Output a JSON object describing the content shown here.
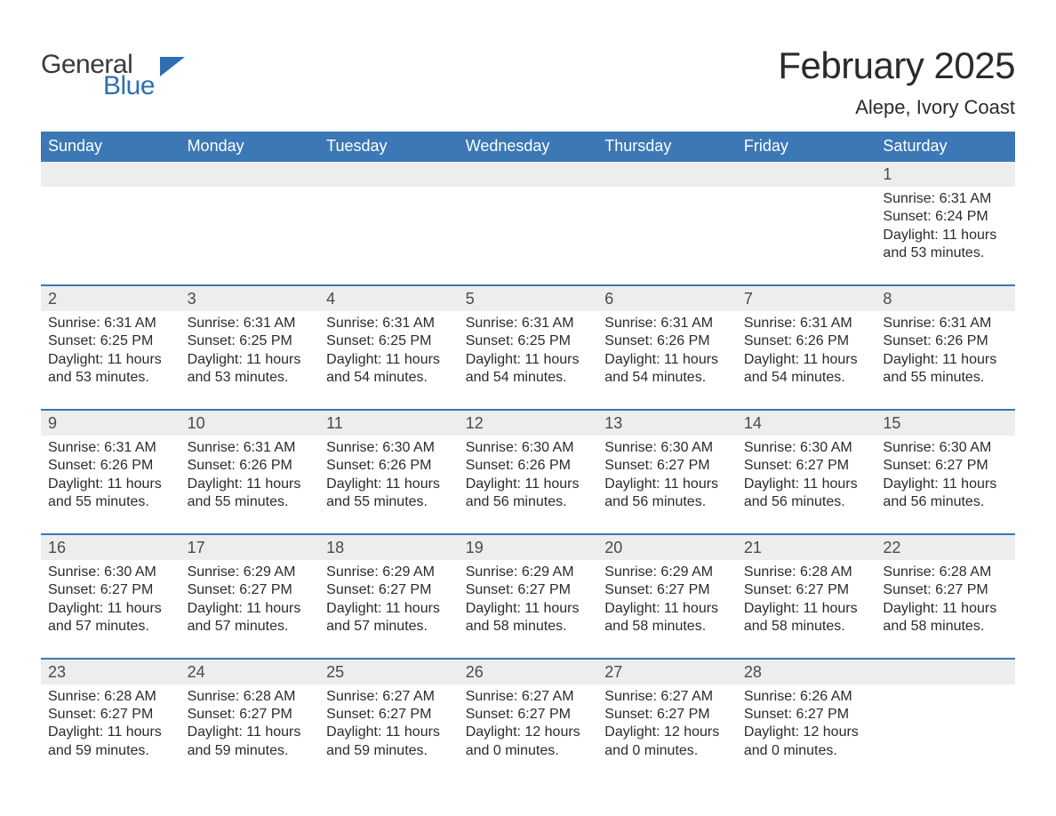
{
  "brand": {
    "name_part1": "General",
    "name_part2": "Blue",
    "text_color_1": "#3a3a3a",
    "text_color_2": "#2f6fb1",
    "flag_color": "#2f6fb1"
  },
  "header": {
    "month_title": "February 2025",
    "location": "Alepe, Ivory Coast",
    "title_fontsize": 42,
    "location_fontsize": 22
  },
  "styling": {
    "dow_background": "#3b78b5",
    "dow_text_color": "#ffffff",
    "daynum_band_background": "#ededed",
    "week_divider_color": "#3b78b5",
    "body_text_color": "#2b2b2b",
    "page_background": "#ffffff",
    "dow_fontsize": 18,
    "daynum_fontsize": 18,
    "data_fontsize": 16
  },
  "days_of_week": [
    "Sunday",
    "Monday",
    "Tuesday",
    "Wednesday",
    "Thursday",
    "Friday",
    "Saturday"
  ],
  "weeks": [
    {
      "cells": [
        {
          "day": "",
          "sunrise": "",
          "sunset": "",
          "daylight": ""
        },
        {
          "day": "",
          "sunrise": "",
          "sunset": "",
          "daylight": ""
        },
        {
          "day": "",
          "sunrise": "",
          "sunset": "",
          "daylight": ""
        },
        {
          "day": "",
          "sunrise": "",
          "sunset": "",
          "daylight": ""
        },
        {
          "day": "",
          "sunrise": "",
          "sunset": "",
          "daylight": ""
        },
        {
          "day": "",
          "sunrise": "",
          "sunset": "",
          "daylight": ""
        },
        {
          "day": "1",
          "sunrise": "Sunrise: 6:31 AM",
          "sunset": "Sunset: 6:24 PM",
          "daylight": "Daylight: 11 hours and 53 minutes."
        }
      ]
    },
    {
      "cells": [
        {
          "day": "2",
          "sunrise": "Sunrise: 6:31 AM",
          "sunset": "Sunset: 6:25 PM",
          "daylight": "Daylight: 11 hours and 53 minutes."
        },
        {
          "day": "3",
          "sunrise": "Sunrise: 6:31 AM",
          "sunset": "Sunset: 6:25 PM",
          "daylight": "Daylight: 11 hours and 53 minutes."
        },
        {
          "day": "4",
          "sunrise": "Sunrise: 6:31 AM",
          "sunset": "Sunset: 6:25 PM",
          "daylight": "Daylight: 11 hours and 54 minutes."
        },
        {
          "day": "5",
          "sunrise": "Sunrise: 6:31 AM",
          "sunset": "Sunset: 6:25 PM",
          "daylight": "Daylight: 11 hours and 54 minutes."
        },
        {
          "day": "6",
          "sunrise": "Sunrise: 6:31 AM",
          "sunset": "Sunset: 6:26 PM",
          "daylight": "Daylight: 11 hours and 54 minutes."
        },
        {
          "day": "7",
          "sunrise": "Sunrise: 6:31 AM",
          "sunset": "Sunset: 6:26 PM",
          "daylight": "Daylight: 11 hours and 54 minutes."
        },
        {
          "day": "8",
          "sunrise": "Sunrise: 6:31 AM",
          "sunset": "Sunset: 6:26 PM",
          "daylight": "Daylight: 11 hours and 55 minutes."
        }
      ]
    },
    {
      "cells": [
        {
          "day": "9",
          "sunrise": "Sunrise: 6:31 AM",
          "sunset": "Sunset: 6:26 PM",
          "daylight": "Daylight: 11 hours and 55 minutes."
        },
        {
          "day": "10",
          "sunrise": "Sunrise: 6:31 AM",
          "sunset": "Sunset: 6:26 PM",
          "daylight": "Daylight: 11 hours and 55 minutes."
        },
        {
          "day": "11",
          "sunrise": "Sunrise: 6:30 AM",
          "sunset": "Sunset: 6:26 PM",
          "daylight": "Daylight: 11 hours and 55 minutes."
        },
        {
          "day": "12",
          "sunrise": "Sunrise: 6:30 AM",
          "sunset": "Sunset: 6:26 PM",
          "daylight": "Daylight: 11 hours and 56 minutes."
        },
        {
          "day": "13",
          "sunrise": "Sunrise: 6:30 AM",
          "sunset": "Sunset: 6:27 PM",
          "daylight": "Daylight: 11 hours and 56 minutes."
        },
        {
          "day": "14",
          "sunrise": "Sunrise: 6:30 AM",
          "sunset": "Sunset: 6:27 PM",
          "daylight": "Daylight: 11 hours and 56 minutes."
        },
        {
          "day": "15",
          "sunrise": "Sunrise: 6:30 AM",
          "sunset": "Sunset: 6:27 PM",
          "daylight": "Daylight: 11 hours and 56 minutes."
        }
      ]
    },
    {
      "cells": [
        {
          "day": "16",
          "sunrise": "Sunrise: 6:30 AM",
          "sunset": "Sunset: 6:27 PM",
          "daylight": "Daylight: 11 hours and 57 minutes."
        },
        {
          "day": "17",
          "sunrise": "Sunrise: 6:29 AM",
          "sunset": "Sunset: 6:27 PM",
          "daylight": "Daylight: 11 hours and 57 minutes."
        },
        {
          "day": "18",
          "sunrise": "Sunrise: 6:29 AM",
          "sunset": "Sunset: 6:27 PM",
          "daylight": "Daylight: 11 hours and 57 minutes."
        },
        {
          "day": "19",
          "sunrise": "Sunrise: 6:29 AM",
          "sunset": "Sunset: 6:27 PM",
          "daylight": "Daylight: 11 hours and 58 minutes."
        },
        {
          "day": "20",
          "sunrise": "Sunrise: 6:29 AM",
          "sunset": "Sunset: 6:27 PM",
          "daylight": "Daylight: 11 hours and 58 minutes."
        },
        {
          "day": "21",
          "sunrise": "Sunrise: 6:28 AM",
          "sunset": "Sunset: 6:27 PM",
          "daylight": "Daylight: 11 hours and 58 minutes."
        },
        {
          "day": "22",
          "sunrise": "Sunrise: 6:28 AM",
          "sunset": "Sunset: 6:27 PM",
          "daylight": "Daylight: 11 hours and 58 minutes."
        }
      ]
    },
    {
      "cells": [
        {
          "day": "23",
          "sunrise": "Sunrise: 6:28 AM",
          "sunset": "Sunset: 6:27 PM",
          "daylight": "Daylight: 11 hours and 59 minutes."
        },
        {
          "day": "24",
          "sunrise": "Sunrise: 6:28 AM",
          "sunset": "Sunset: 6:27 PM",
          "daylight": "Daylight: 11 hours and 59 minutes."
        },
        {
          "day": "25",
          "sunrise": "Sunrise: 6:27 AM",
          "sunset": "Sunset: 6:27 PM",
          "daylight": "Daylight: 11 hours and 59 minutes."
        },
        {
          "day": "26",
          "sunrise": "Sunrise: 6:27 AM",
          "sunset": "Sunset: 6:27 PM",
          "daylight": "Daylight: 12 hours and 0 minutes."
        },
        {
          "day": "27",
          "sunrise": "Sunrise: 6:27 AM",
          "sunset": "Sunset: 6:27 PM",
          "daylight": "Daylight: 12 hours and 0 minutes."
        },
        {
          "day": "28",
          "sunrise": "Sunrise: 6:26 AM",
          "sunset": "Sunset: 6:27 PM",
          "daylight": "Daylight: 12 hours and 0 minutes."
        },
        {
          "day": "",
          "sunrise": "",
          "sunset": "",
          "daylight": ""
        }
      ]
    }
  ]
}
